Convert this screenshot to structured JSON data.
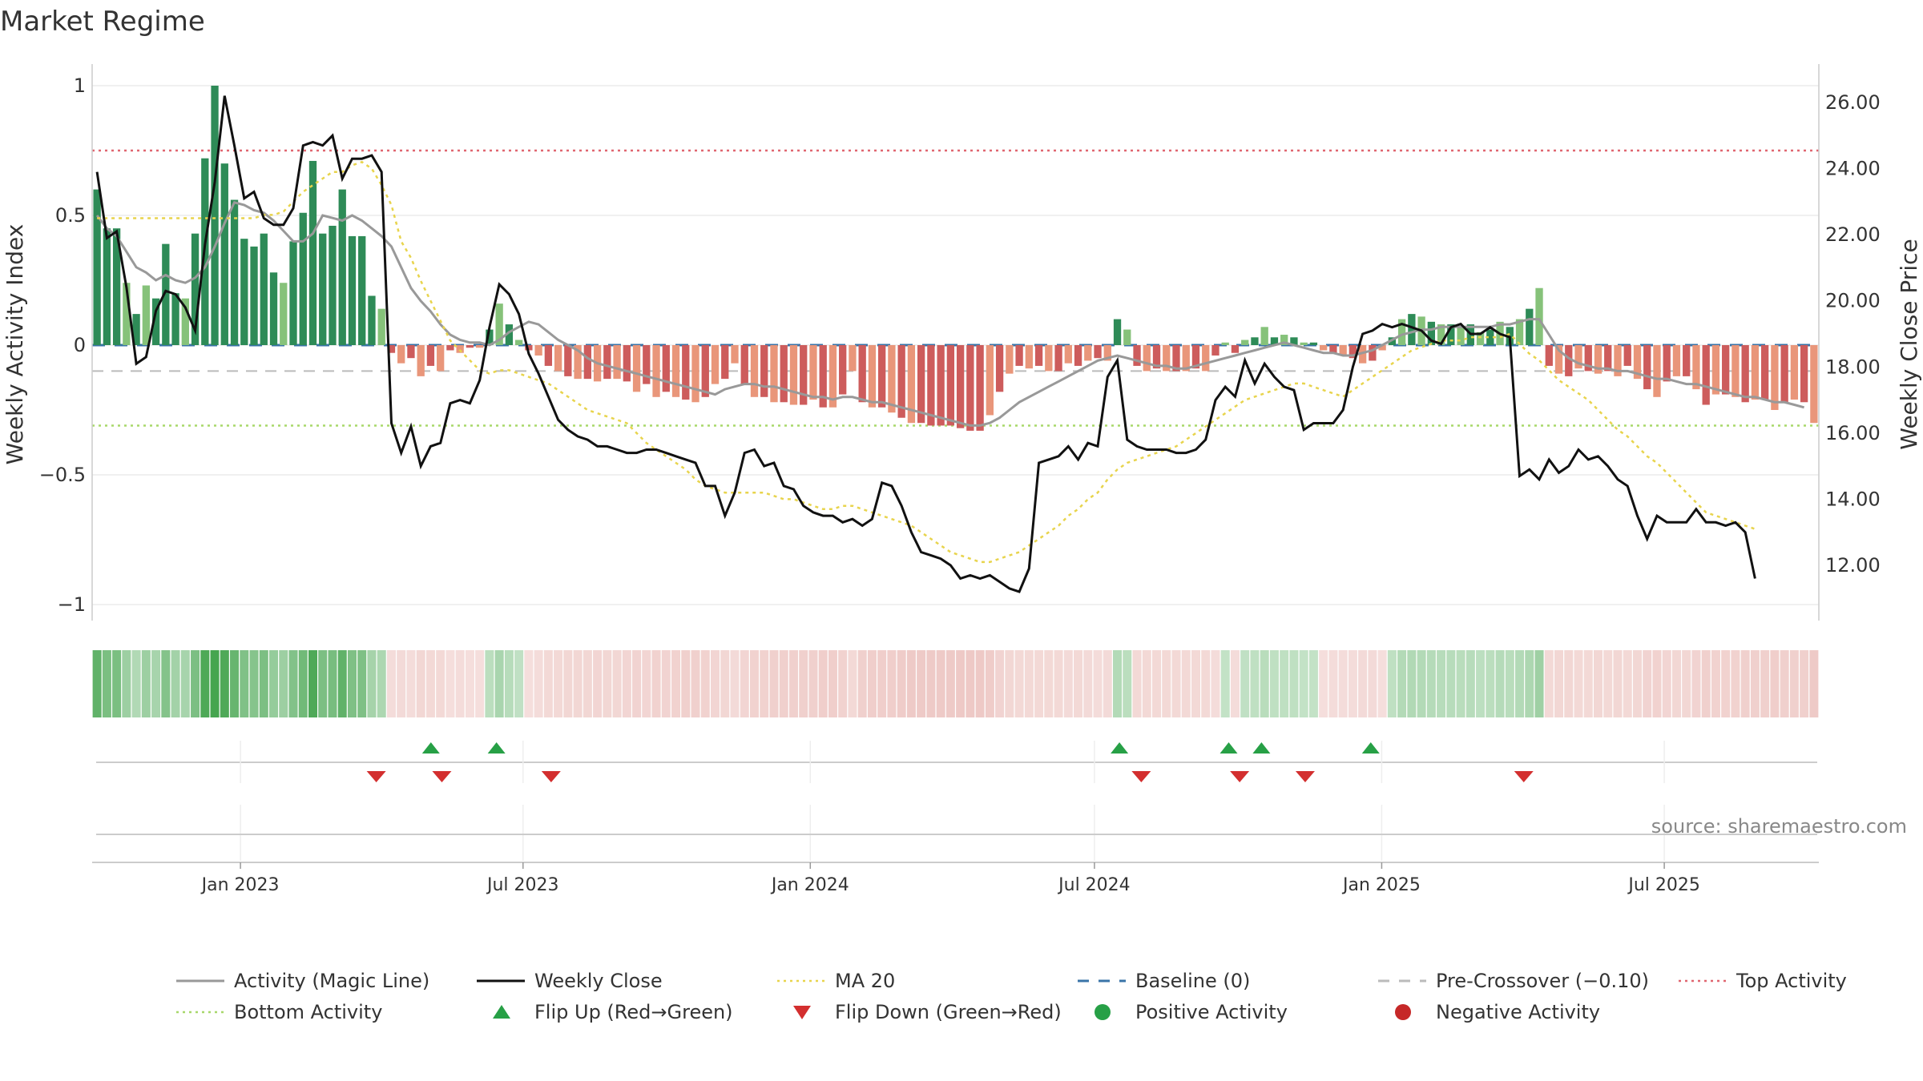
{
  "chart_data": {
    "type": "bar",
    "title": "Market Regime",
    "source": "source: sharemaestro.com",
    "y_left": {
      "label": "Weekly Activity Index",
      "range": [
        -1.1,
        1.1
      ],
      "ticks": [
        "1",
        "0.5",
        "0",
        "−0.5",
        "−1"
      ]
    },
    "y_right": {
      "label": "Weekly Close Price",
      "range": [
        10.8,
        27.0
      ],
      "ticks": [
        "26.00",
        "24.00",
        "22.00",
        "20.00",
        "18.00",
        "16.00",
        "14.00",
        "12.00"
      ]
    },
    "x_axis": {
      "start": "2022-09-28",
      "end": "2025-10-08",
      "ticks": [
        "Jan 2023",
        "Jul 2023",
        "Jan 2024",
        "Jul 2024",
        "Jan 2025",
        "Jul 2025"
      ],
      "tick_dates": [
        "2023-01-01",
        "2023-07-01",
        "2024-01-01",
        "2024-07-01",
        "2025-01-01",
        "2025-07-01"
      ]
    },
    "reference_lines": {
      "top_activity": 0.75,
      "bottom_activity": -0.31,
      "pre_crossover": -0.1,
      "baseline": 0
    },
    "activity_values": [
      0.6,
      0.45,
      0.45,
      0.24,
      0.12,
      0.23,
      0.18,
      0.39,
      0.2,
      0.18,
      0.43,
      0.72,
      1.0,
      0.7,
      0.56,
      0.41,
      0.38,
      0.43,
      0.28,
      0.24,
      0.4,
      0.51,
      0.71,
      0.43,
      0.46,
      0.6,
      0.42,
      0.42,
      0.19,
      0.14,
      -0.03,
      -0.07,
      -0.05,
      -0.12,
      -0.08,
      -0.1,
      -0.02,
      -0.03,
      -0.01,
      -0.01,
      0.06,
      0.16,
      0.08,
      0.02,
      -0.02,
      -0.04,
      -0.08,
      -0.1,
      -0.12,
      -0.13,
      -0.13,
      -0.14,
      -0.13,
      -0.13,
      -0.14,
      -0.18,
      -0.15,
      -0.2,
      -0.18,
      -0.2,
      -0.21,
      -0.22,
      -0.2,
      -0.15,
      -0.13,
      -0.07,
      -0.15,
      -0.2,
      -0.2,
      -0.22,
      -0.22,
      -0.23,
      -0.23,
      -0.21,
      -0.24,
      -0.24,
      -0.19,
      -0.1,
      -0.22,
      -0.24,
      -0.24,
      -0.26,
      -0.28,
      -0.3,
      -0.3,
      -0.31,
      -0.31,
      -0.31,
      -0.32,
      -0.33,
      -0.33,
      -0.27,
      -0.18,
      -0.11,
      -0.08,
      -0.09,
      -0.08,
      -0.1,
      -0.1,
      -0.07,
      -0.08,
      -0.06,
      -0.05,
      -0.06,
      0.1,
      0.06,
      -0.08,
      -0.1,
      -0.09,
      -0.1,
      -0.1,
      -0.1,
      -0.09,
      -0.1,
      -0.04,
      0.01,
      -0.03,
      0.02,
      0.03,
      0.07,
      0.03,
      0.04,
      0.03,
      0.01,
      0.01,
      -0.02,
      -0.03,
      -0.04,
      -0.05,
      -0.07,
      -0.06,
      -0.02,
      0.03,
      0.1,
      0.12,
      0.11,
      0.09,
      0.08,
      0.08,
      0.07,
      0.08,
      0.05,
      0.06,
      0.09,
      0.07,
      0.1,
      0.14,
      0.22,
      -0.08,
      -0.11,
      -0.12,
      -0.09,
      -0.1,
      -0.11,
      -0.1,
      -0.12,
      -0.08,
      -0.13,
      -0.17,
      -0.2,
      -0.14,
      -0.12,
      -0.12,
      -0.17,
      -0.23,
      -0.19,
      -0.19,
      -0.2,
      -0.22,
      -0.21,
      -0.21,
      -0.25,
      -0.22,
      -0.21,
      -0.22,
      -0.3
    ],
    "close_values": [
      23.9,
      21.9,
      22.1,
      20.4,
      18.1,
      18.3,
      19.7,
      20.3,
      20.2,
      19.8,
      19.1,
      21.7,
      23.6,
      26.2,
      24.7,
      23.1,
      23.3,
      22.5,
      22.3,
      22.3,
      22.8,
      24.7,
      24.8,
      24.7,
      25.0,
      23.7,
      24.3,
      24.3,
      24.4,
      23.9,
      16.3,
      15.4,
      16.2,
      15.0,
      15.6,
      15.7,
      16.9,
      17.0,
      16.9,
      17.6,
      19.2,
      20.5,
      20.2,
      19.6,
      18.4,
      17.8,
      17.1,
      16.4,
      16.1,
      15.9,
      15.8,
      15.6,
      15.6,
      15.5,
      15.4,
      15.4,
      15.5,
      15.5,
      15.4,
      15.3,
      15.2,
      15.1,
      14.4,
      14.4,
      13.5,
      14.2,
      15.4,
      15.5,
      15.0,
      15.1,
      14.4,
      14.3,
      13.8,
      13.6,
      13.5,
      13.5,
      13.3,
      13.4,
      13.2,
      13.4,
      14.5,
      14.4,
      13.8,
      13.0,
      12.4,
      12.3,
      12.2,
      12.0,
      11.6,
      11.7,
      11.6,
      11.7,
      11.5,
      11.3,
      11.2,
      11.9,
      15.1,
      15.2,
      15.3,
      15.6,
      15.2,
      15.7,
      15.6,
      17.7,
      18.2,
      15.8,
      15.6,
      15.5,
      15.5,
      15.5,
      15.4,
      15.4,
      15.5,
      15.8,
      17.0,
      17.4,
      17.1,
      18.2,
      17.5,
      18.1,
      17.7,
      17.4,
      17.3,
      16.1,
      16.3,
      16.3,
      16.3,
      16.7,
      18.0,
      19.0,
      19.1,
      19.3,
      19.2,
      19.3,
      19.2,
      19.1,
      18.8,
      18.7,
      19.2,
      19.3,
      19.0,
      19.0,
      19.2,
      19.0,
      18.9,
      14.7,
      14.9,
      14.6,
      15.2,
      14.8,
      15.0,
      15.5,
      15.2,
      15.3,
      15.0,
      14.6,
      14.4,
      13.5,
      12.8,
      13.5,
      13.3,
      13.3,
      13.3,
      13.7,
      13.3,
      13.3,
      13.2,
      13.3,
      13.0,
      11.6
    ],
    "ma20_values": [
      22.5,
      22.5,
      22.5,
      22.5,
      22.5,
      22.5,
      22.5,
      22.5,
      22.5,
      22.5,
      22.5,
      22.5,
      22.5,
      22.5,
      22.5,
      22.5,
      22.5,
      22.6,
      22.6,
      22.7,
      23.0,
      23.3,
      23.5,
      23.7,
      23.9,
      23.9,
      24.1,
      24.2,
      24.0,
      23.5,
      22.9,
      21.8,
      21.3,
      20.6,
      20.0,
      19.4,
      18.8,
      18.5,
      18.2,
      17.9,
      17.8,
      17.9,
      17.9,
      17.8,
      17.7,
      17.6,
      17.5,
      17.3,
      17.1,
      16.9,
      16.7,
      16.6,
      16.5,
      16.4,
      16.3,
      16.0,
      15.7,
      15.5,
      15.3,
      15.1,
      14.9,
      14.6,
      14.4,
      14.3,
      14.2,
      14.2,
      14.2,
      14.2,
      14.2,
      14.1,
      14.0,
      14.0,
      13.9,
      13.8,
      13.7,
      13.7,
      13.8,
      13.8,
      13.7,
      13.6,
      13.5,
      13.4,
      13.3,
      13.2,
      13.0,
      12.8,
      12.6,
      12.4,
      12.3,
      12.2,
      12.1,
      12.1,
      12.2,
      12.3,
      12.4,
      12.6,
      12.8,
      13.0,
      13.2,
      13.5,
      13.7,
      14.0,
      14.2,
      14.6,
      14.9,
      15.1,
      15.2,
      15.3,
      15.4,
      15.5,
      15.6,
      15.8,
      16.0,
      16.2,
      16.4,
      16.6,
      16.8,
      17.0,
      17.1,
      17.2,
      17.3,
      17.4,
      17.5,
      17.5,
      17.4,
      17.3,
      17.2,
      17.1,
      17.3,
      17.5,
      17.7,
      17.9,
      18.1,
      18.3,
      18.5,
      18.6,
      18.7,
      18.8,
      18.8,
      18.8,
      18.9,
      18.9,
      18.9,
      18.9,
      19.0,
      18.7,
      18.4,
      18.2,
      17.9,
      17.6,
      17.4,
      17.2,
      17.0,
      16.7,
      16.4,
      16.1,
      15.9,
      15.6,
      15.3,
      15.1,
      14.8,
      14.5,
      14.2,
      13.9,
      13.6,
      13.5,
      13.4,
      13.3,
      13.2,
      13.1
    ],
    "magic_line_values": [
      0.5,
      0.45,
      0.42,
      0.36,
      0.3,
      0.28,
      0.25,
      0.27,
      0.25,
      0.24,
      0.26,
      0.3,
      0.38,
      0.47,
      0.55,
      0.54,
      0.52,
      0.51,
      0.48,
      0.44,
      0.4,
      0.4,
      0.43,
      0.5,
      0.49,
      0.48,
      0.5,
      0.48,
      0.45,
      0.42,
      0.38,
      0.3,
      0.22,
      0.17,
      0.13,
      0.08,
      0.04,
      0.02,
      0.01,
      0.01,
      0.0,
      0.02,
      0.05,
      0.07,
      0.09,
      0.08,
      0.05,
      0.02,
      0.0,
      -0.02,
      -0.05,
      -0.07,
      -0.08,
      -0.09,
      -0.1,
      -0.11,
      -0.12,
      -0.13,
      -0.14,
      -0.15,
      -0.16,
      -0.17,
      -0.18,
      -0.19,
      -0.17,
      -0.16,
      -0.15,
      -0.15,
      -0.16,
      -0.16,
      -0.17,
      -0.18,
      -0.19,
      -0.2,
      -0.2,
      -0.21,
      -0.2,
      -0.2,
      -0.21,
      -0.22,
      -0.22,
      -0.23,
      -0.24,
      -0.25,
      -0.26,
      -0.27,
      -0.28,
      -0.29,
      -0.3,
      -0.31,
      -0.31,
      -0.3,
      -0.28,
      -0.25,
      -0.22,
      -0.2,
      -0.18,
      -0.16,
      -0.14,
      -0.12,
      -0.1,
      -0.08,
      -0.06,
      -0.05,
      -0.04,
      -0.05,
      -0.06,
      -0.07,
      -0.08,
      -0.08,
      -0.09,
      -0.09,
      -0.08,
      -0.07,
      -0.06,
      -0.05,
      -0.04,
      -0.03,
      -0.02,
      -0.01,
      0.0,
      0.01,
      0.0,
      -0.01,
      -0.02,
      -0.03,
      -0.03,
      -0.04,
      -0.04,
      -0.03,
      -0.02,
      0.0,
      0.02,
      0.04,
      0.05,
      0.06,
      0.06,
      0.07,
      0.07,
      0.07,
      0.07,
      0.07,
      0.07,
      0.08,
      0.08,
      0.09,
      0.1,
      0.1,
      0.04,
      -0.02,
      -0.05,
      -0.07,
      -0.08,
      -0.09,
      -0.09,
      -0.1,
      -0.1,
      -0.11,
      -0.12,
      -0.13,
      -0.13,
      -0.14,
      -0.15,
      -0.15,
      -0.16,
      -0.17,
      -0.18,
      -0.19,
      -0.2,
      -0.2,
      -0.21,
      -0.22,
      -0.22,
      -0.23,
      -0.24
    ],
    "flip_up_dates": [
      "2023-05-03",
      "2023-06-14",
      "2024-07-17",
      "2024-09-25",
      "2024-10-16",
      "2024-12-25"
    ],
    "flip_down_dates": [
      "2023-03-29",
      "2023-05-10",
      "2023-07-19",
      "2024-07-31",
      "2024-10-02",
      "2024-11-13",
      "2025-04-02"
    ],
    "legend": [
      {
        "label": "Activity (Magic Line)",
        "kind": "line",
        "color": "#999999"
      },
      {
        "label": "Weekly Close",
        "kind": "line",
        "color": "#111111"
      },
      {
        "label": "MA 20",
        "kind": "dotted",
        "color": "#e8d44d"
      },
      {
        "label": "Baseline (0)",
        "kind": "dashed",
        "color": "#3a74a8"
      },
      {
        "label": "Pre-Crossover (−0.10)",
        "kind": "dashed",
        "color": "#bbbbbb"
      },
      {
        "label": "Top Activity",
        "kind": "dotted",
        "color": "#e06670"
      },
      {
        "label": "Bottom Activity",
        "kind": "dotted",
        "color": "#a8d86a"
      },
      {
        "label": "Flip Up (Red→Green)",
        "kind": "tri-up",
        "color": "#27a046"
      },
      {
        "label": "Flip Down (Green→Red)",
        "kind": "tri-down",
        "color": "#d32f2f"
      },
      {
        "label": "Positive Activity",
        "kind": "dot",
        "color": "#27a046"
      },
      {
        "label": "Negative Activity",
        "kind": "dot",
        "color": "#c62828"
      }
    ],
    "colors": {
      "pos_strong": "#2e8b57",
      "pos_light": "#86c27a",
      "neg_strong": "#cd5c5c",
      "neg_light": "#e9967a",
      "close": "#111111",
      "ma": "#e8d44d",
      "magic": "#999999",
      "top": "#e06670",
      "bottom": "#a8d86a",
      "baseline": "#3a74a8",
      "precross": "#bbbbbb",
      "grid": "#ececec",
      "axis_text": "#333333"
    }
  }
}
